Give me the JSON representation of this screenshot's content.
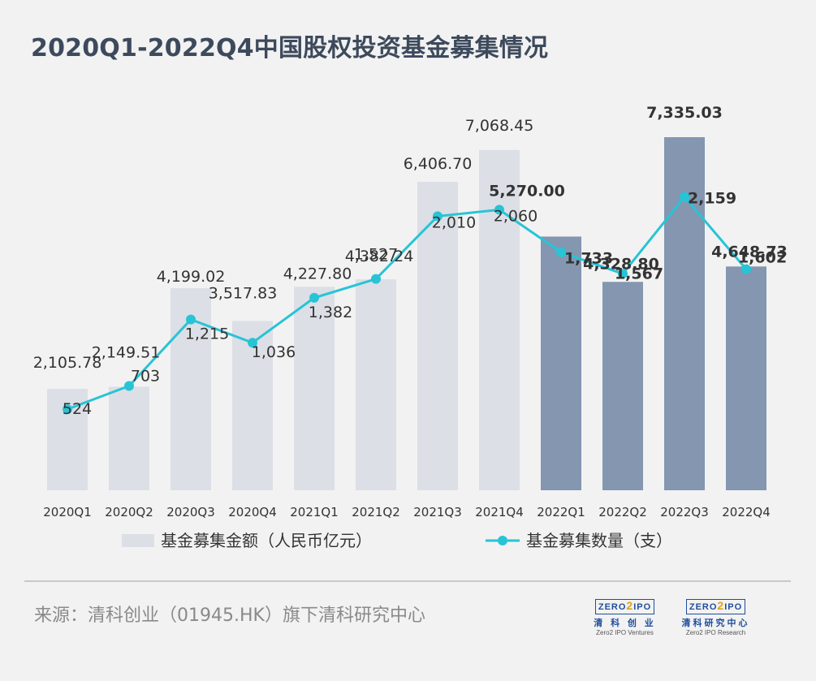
{
  "title": "2020Q1-2022Q4中国股权投资基金募集情况",
  "source": "来源：清科创业（01945.HK）旗下清科研究中心",
  "logos": [
    {
      "box_left": "ZERO",
      "box_mid": "2",
      "box_right": "IPO",
      "cn": "清 科 创 业",
      "en": "Zero2 IPO Ventures"
    },
    {
      "box_left": "ZERO",
      "box_mid": "2",
      "box_right": "IPO",
      "cn": "清科研究中心",
      "en": "Zero2 IPO Research"
    }
  ],
  "colors": {
    "bar_light": "#dcdfe6",
    "bar_dark": "#8496b0",
    "line": "#27c4d6",
    "text": "#333333"
  },
  "chart_data": {
    "type": "bar",
    "categories": [
      "2020Q1",
      "2020Q2",
      "2020Q3",
      "2020Q4",
      "2021Q1",
      "2021Q2",
      "2021Q3",
      "2021Q4",
      "2022Q1",
      "2022Q2",
      "2022Q3",
      "2022Q4"
    ],
    "series": [
      {
        "name": "基金募集金额（人民币亿元）",
        "type": "bar",
        "values": [
          2105.78,
          2149.51,
          4199.02,
          3517.83,
          4227.8,
          4382.24,
          6406.7,
          7068.45,
          5270.0,
          4328.8,
          7335.03,
          4648.73
        ],
        "labels": [
          "2,105.78",
          "2,149.51",
          "4,199.02",
          "3,517.83",
          "4,227.80",
          "4,382.24",
          "6,406.70",
          "7,068.45",
          "5,270.00",
          "4,328.80",
          "7,335.03",
          "4,648.73"
        ]
      },
      {
        "name": "基金募集数量（支）",
        "type": "line",
        "values": [
          524,
          703,
          1215,
          1036,
          1382,
          1527,
          2010,
          2060,
          1733,
          1567,
          2159,
          1602
        ],
        "labels": [
          "524",
          "703",
          "1,215",
          "1,036",
          "1,382",
          "1,527",
          "2,010",
          "2,060",
          "1,733",
          "1,567",
          "2,159",
          "1,602"
        ]
      }
    ],
    "highlight_from_category": "2022Q1",
    "legend": [
      "基金募集金额（人民币亿元）",
      "基金募集数量（支）"
    ]
  }
}
